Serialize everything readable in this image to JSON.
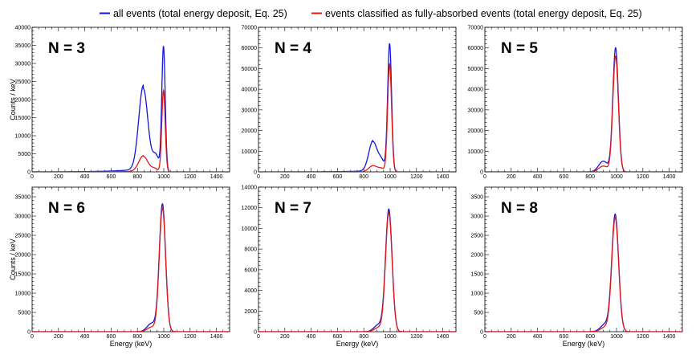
{
  "chart_data": {
    "type": "line",
    "legend": {
      "position": "top-right",
      "entries": [
        {
          "label": "all events (total energy deposit, Eq. 25)",
          "color": "#1515d8"
        },
        {
          "label": "events classified as fully-absorbed events (total energy deposit, Eq. 25)",
          "color": "#e01818"
        }
      ]
    },
    "xlabel": "Energy (keV)",
    "ylabel": "Counts / keV",
    "xlim": [
      0,
      1500
    ],
    "xticks": [
      0,
      200,
      400,
      600,
      800,
      1000,
      1200,
      1400
    ],
    "panels": [
      {
        "title": "N = 3",
        "ylim": [
          0,
          40000
        ],
        "yticks": [
          0,
          5000,
          10000,
          15000,
          20000,
          25000,
          30000,
          35000,
          40000
        ],
        "series": [
          {
            "name": "all events",
            "color": "#1515d8",
            "peaks": [
              {
                "center": 998,
                "sigma": 13,
                "height": 34500
              },
              {
                "center": 845,
                "sigma": 35,
                "height": 23000,
                "left_tail": 2e-06
              },
              {
                "center": 940,
                "sigma": 25,
                "height": 4500
              }
            ]
          },
          {
            "name": "fully-absorbed",
            "color": "#e01818",
            "peaks": [
              {
                "center": 998,
                "sigma": 13,
                "height": 22500
              },
              {
                "center": 845,
                "sigma": 35,
                "height": 4300,
                "left_tail": 2e-06
              },
              {
                "center": 930,
                "sigma": 25,
                "height": 900
              }
            ]
          }
        ]
      },
      {
        "title": "N = 4",
        "ylim": [
          0,
          70000
        ],
        "yticks": [
          0,
          10000,
          20000,
          30000,
          40000,
          50000,
          60000,
          70000
        ],
        "series": [
          {
            "name": "all events",
            "color": "#1515d8",
            "peaks": [
              {
                "center": 996,
                "sigma": 15,
                "height": 62000
              },
              {
                "center": 870,
                "sigma": 32,
                "height": 14500,
                "left_tail": 5e-06
              },
              {
                "center": 935,
                "sigma": 24,
                "height": 5000
              }
            ]
          },
          {
            "name": "fully-absorbed",
            "color": "#e01818",
            "peaks": [
              {
                "center": 996,
                "sigma": 15,
                "height": 52000
              },
              {
                "center": 870,
                "sigma": 32,
                "height": 3000
              },
              {
                "center": 935,
                "sigma": 24,
                "height": 1500
              }
            ]
          }
        ]
      },
      {
        "title": "N = 5",
        "ylim": [
          0,
          70000
        ],
        "yticks": [
          0,
          10000,
          20000,
          30000,
          40000,
          50000,
          60000,
          70000
        ],
        "series": [
          {
            "name": "all events",
            "color": "#1515d8",
            "peaks": [
              {
                "center": 993,
                "sigma": 21,
                "height": 60000
              },
              {
                "center": 900,
                "sigma": 35,
                "height": 5200
              }
            ]
          },
          {
            "name": "fully-absorbed",
            "color": "#e01818",
            "peaks": [
              {
                "center": 993,
                "sigma": 21,
                "height": 56000
              },
              {
                "center": 900,
                "sigma": 35,
                "height": 2800
              }
            ]
          }
        ]
      },
      {
        "title": "N = 6",
        "ylim": [
          0,
          37500
        ],
        "yticks": [
          0,
          5000,
          10000,
          15000,
          20000,
          25000,
          30000,
          35000
        ],
        "series": [
          {
            "name": "all events",
            "color": "#1515d8",
            "peaks": [
              {
                "center": 990,
                "sigma": 24,
                "height": 33000
              },
              {
                "center": 910,
                "sigma": 35,
                "height": 2200
              }
            ]
          },
          {
            "name": "fully-absorbed",
            "color": "#e01818",
            "peaks": [
              {
                "center": 990,
                "sigma": 24,
                "height": 32000
              },
              {
                "center": 910,
                "sigma": 35,
                "height": 1200
              }
            ]
          }
        ]
      },
      {
        "title": "N = 7",
        "ylim": [
          0,
          14000
        ],
        "yticks": [
          0,
          2000,
          4000,
          6000,
          8000,
          10000,
          12000,
          14000
        ],
        "series": [
          {
            "name": "all events",
            "color": "#1515d8",
            "peaks": [
              {
                "center": 990,
                "sigma": 25,
                "height": 11800
              },
              {
                "center": 915,
                "sigma": 35,
                "height": 700
              }
            ]
          },
          {
            "name": "fully-absorbed",
            "color": "#e01818",
            "peaks": [
              {
                "center": 990,
                "sigma": 25,
                "height": 11500
              },
              {
                "center": 915,
                "sigma": 35,
                "height": 400
              }
            ]
          }
        ]
      },
      {
        "title": "N = 8",
        "ylim": [
          0,
          3750
        ],
        "yticks": [
          0,
          500,
          1000,
          1500,
          2000,
          2500,
          3000,
          3500
        ],
        "series": [
          {
            "name": "all events",
            "color": "#1515d8",
            "peaks": [
              {
                "center": 990,
                "sigma": 26,
                "height": 3030
              },
              {
                "center": 915,
                "sigma": 35,
                "height": 200
              }
            ]
          },
          {
            "name": "fully-absorbed",
            "color": "#e01818",
            "peaks": [
              {
                "center": 990,
                "sigma": 26,
                "height": 2950
              },
              {
                "center": 915,
                "sigma": 35,
                "height": 120
              }
            ]
          }
        ]
      }
    ]
  }
}
